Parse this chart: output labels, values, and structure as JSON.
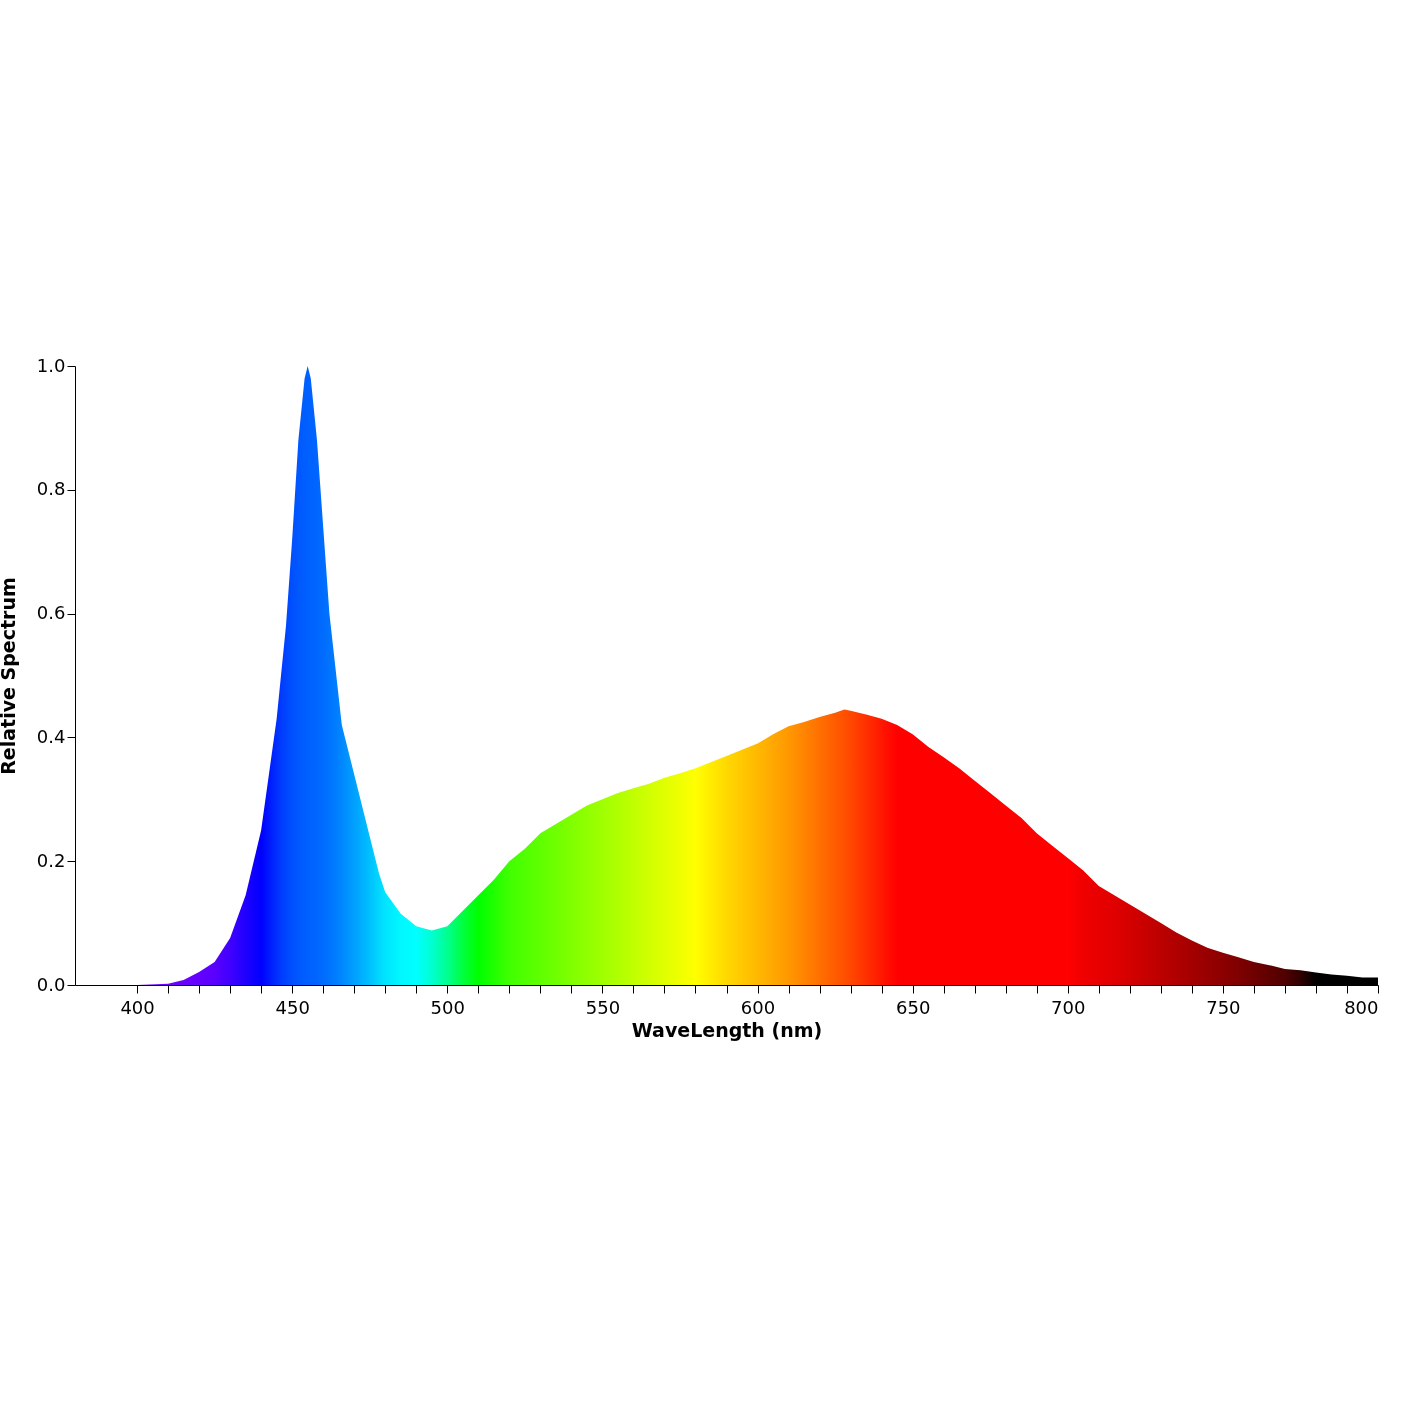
{
  "chart_data": {
    "type": "area",
    "xlabel": "WaveLength (nm)",
    "ylabel": "Relative Spectrum",
    "x": [
      380,
      390,
      400,
      410,
      415,
      420,
      425,
      430,
      435,
      440,
      445,
      448,
      450,
      452,
      454,
      455,
      456,
      458,
      460,
      462,
      464,
      466,
      468,
      470,
      475,
      478,
      480,
      485,
      490,
      495,
      500,
      505,
      510,
      515,
      520,
      525,
      530,
      535,
      540,
      545,
      550,
      555,
      560,
      565,
      570,
      575,
      580,
      590,
      600,
      605,
      610,
      615,
      620,
      625,
      628,
      630,
      635,
      640,
      645,
      650,
      655,
      660,
      665,
      670,
      675,
      680,
      685,
      690,
      695,
      700,
      705,
      710,
      715,
      720,
      725,
      730,
      735,
      740,
      745,
      750,
      755,
      760,
      765,
      770,
      775,
      780,
      785,
      790,
      795,
      800
    ],
    "series": [
      {
        "values": [
          0,
          0,
          0,
          0.002,
          0.008,
          0.021,
          0.037,
          0.076,
          0.145,
          0.25,
          0.43,
          0.58,
          0.72,
          0.88,
          0.98,
          1.0,
          0.98,
          0.88,
          0.74,
          0.6,
          0.51,
          0.42,
          0.38,
          0.34,
          0.24,
          0.18,
          0.15,
          0.115,
          0.095,
          0.088,
          0.095,
          0.12,
          0.145,
          0.17,
          0.2,
          0.22,
          0.245,
          0.26,
          0.275,
          0.29,
          0.3,
          0.31,
          0.318,
          0.325,
          0.335,
          0.342,
          0.35,
          0.37,
          0.39,
          0.405,
          0.418,
          0.425,
          0.433,
          0.44,
          0.445,
          0.443,
          0.437,
          0.43,
          0.42,
          0.405,
          0.385,
          0.368,
          0.35,
          0.33,
          0.31,
          0.29,
          0.27,
          0.245,
          0.225,
          0.205,
          0.185,
          0.16,
          0.145,
          0.13,
          0.115,
          0.1,
          0.085,
          0.072,
          0.06,
          0.052,
          0.045,
          0.037,
          0.032,
          0.026,
          0.024,
          0.02,
          0.017,
          0.015,
          0.012,
          0.012
        ],
        "colors": [
          "#8000ff",
          "#8000ff",
          "#7a00ff",
          "#7000ff",
          "#6a00ff",
          "#6400ff",
          "#5a00ff",
          "#4000ff",
          "#2000ff",
          "#0000ff",
          "#0030ff",
          "#0045ff",
          "#0050ff",
          "#0058ff",
          "#005eff",
          "#0060ff",
          "#0062ff",
          "#0066ff",
          "#006cff",
          "#0074ff",
          "#007cff",
          "#0088ff",
          "#0094ff",
          "#00a0ff",
          "#00c0ff",
          "#00d8ff",
          "#00e4ff",
          "#00f8ff",
          "#00ffff",
          "#00ffd0",
          "#00ff90",
          "#00ff40",
          "#00ff00",
          "#20ff00",
          "#40ff00",
          "#50ff00",
          "#60ff00",
          "#70ff00",
          "#80ff00",
          "#90ff00",
          "#a0ff00",
          "#b0ff00",
          "#c0ff00",
          "#d0ff00",
          "#e0ff00",
          "#f0ff00",
          "#ffff00",
          "#ffd800",
          "#ffb800",
          "#ffa800",
          "#ff9800",
          "#ff8400",
          "#ff7000",
          "#ff5c00",
          "#ff5000",
          "#ff4800",
          "#ff3000",
          "#ff1800",
          "#ff0000",
          "#ff0000",
          "#ff0000",
          "#ff0000",
          "#ff0000",
          "#ff0000",
          "#ff0000",
          "#ff0000",
          "#ff0000",
          "#ff0000",
          "#ff0000",
          "#ff0000",
          "#f00000",
          "#e80000",
          "#e00000",
          "#d40000",
          "#c80000",
          "#bc0000",
          "#b00000",
          "#a40000",
          "#980000",
          "#8c0000",
          "#800000",
          "#700000",
          "#600000",
          "#500000",
          "#300000",
          "#000000",
          "#000000",
          "#000000",
          "#000000",
          "#000000"
        ]
      }
    ],
    "xlim": [
      380,
      800
    ],
    "xticks": [
      400,
      {
        "value": 410,
        "label": null
      },
      {
        "value": 420,
        "label": null
      },
      {
        "value": 430,
        "label": null
      },
      {
        "value": 440,
        "label": null
      },
      450,
      {
        "value": 460,
        "label": null
      },
      {
        "value": 470,
        "label": null
      },
      {
        "value": 480,
        "label": null
      },
      {
        "value": 490,
        "label": null
      },
      500,
      {
        "value": 510,
        "label": null
      },
      {
        "value": 520,
        "label": null
      },
      {
        "value": 530,
        "label": null
      },
      {
        "value": 540,
        "label": null
      },
      550,
      {
        "value": 560,
        "label": null
      },
      {
        "value": 570,
        "label": null
      },
      {
        "value": 580,
        "label": null
      },
      {
        "value": 590,
        "label": null
      },
      600,
      {
        "value": 610,
        "label": null
      },
      {
        "value": 620,
        "label": null
      },
      {
        "value": 630,
        "label": null
      },
      {
        "value": 640,
        "label": null
      },
      650,
      {
        "value": 660,
        "label": null
      },
      {
        "value": 670,
        "label": null
      },
      {
        "value": 680,
        "label": null
      },
      {
        "value": 690,
        "label": null
      },
      700,
      {
        "value": 710,
        "label": null
      },
      {
        "value": 720,
        "label": null
      },
      {
        "value": 730,
        "label": null
      },
      {
        "value": 740,
        "label": null
      },
      750,
      {
        "value": 760,
        "label": null
      },
      {
        "value": 770,
        "label": null
      },
      {
        "value": 780,
        "label": null
      },
      {
        "value": 790,
        "label": null
      },
      800
    ],
    "ylim": [
      0,
      1
    ],
    "yticks": [
      {
        "value": 0,
        "label": "0.0"
      },
      {
        "value": 0.2,
        "label": "0.2"
      },
      {
        "value": 0.4,
        "label": "0.4"
      },
      {
        "value": 0.6,
        "label": "0.6"
      },
      {
        "value": 0.8,
        "label": "0.8"
      },
      {
        "value": 1,
        "label": "1.0"
      }
    ],
    "grid": false
  }
}
